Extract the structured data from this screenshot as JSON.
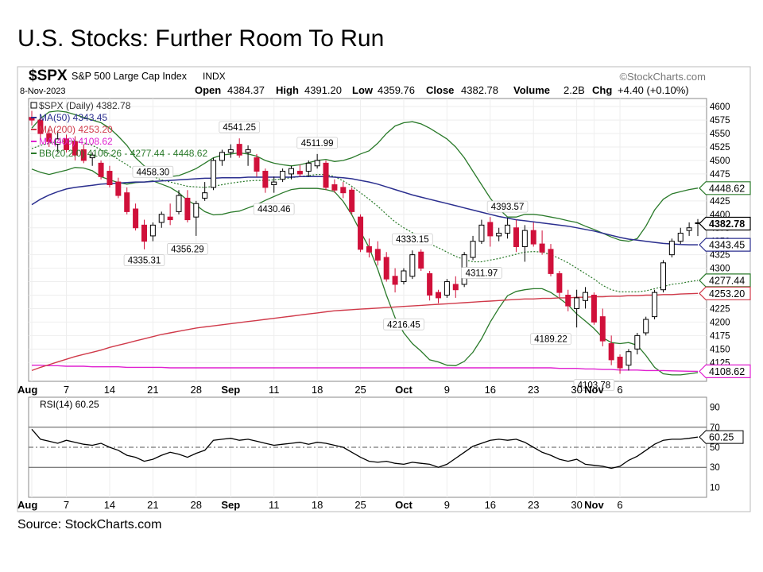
{
  "slide_title": "U.S. Stocks: Further Room To Run",
  "source": "Source: StockCharts.com",
  "brand": "©StockCharts.com",
  "chart_data": [
    {
      "type": "candlestick",
      "symbol": "$SPX",
      "name": "S&P 500 Large Cap Index",
      "exchange": "INDX",
      "date": "8-Nov-2023",
      "ohlc_line": {
        "open_label": "Open",
        "open": "4384.37",
        "high_label": "High",
        "high": "4391.20",
        "low_label": "Low",
        "low": "4359.76",
        "close_label": "Close",
        "close": "4382.78",
        "volume_label": "Volume",
        "volume": "2.2B",
        "chg_label": "Chg",
        "chg": "+4.40 (+0.10%)"
      },
      "legend": [
        {
          "text": "$SPX (Daily) 4382.78",
          "color": "#333333"
        },
        {
          "text": "MA(50) 4343.45",
          "color": "#2b2f8f"
        },
        {
          "text": "MA(200) 4253.20",
          "color": "#d03a4a"
        },
        {
          "text": "MA(400) 4108.62",
          "color": "#e020d0"
        },
        {
          "text": "BB(20,2.0) 4106.26 - 4277.44 - 4448.62",
          "color": "#2a7a2a"
        }
      ],
      "y_ticks": [
        4125,
        4150,
        4175,
        4200,
        4225,
        4250,
        4275,
        4300,
        4325,
        4350,
        4375,
        4400,
        4425,
        4450,
        4475,
        4500,
        4525,
        4550,
        4575,
        4600
      ],
      "ylim": [
        4090,
        4615
      ],
      "x_ticks": [
        {
          "label": "Aug",
          "bold": true,
          "i": 0
        },
        {
          "label": "7",
          "bold": false,
          "i": 4
        },
        {
          "label": "14",
          "bold": false,
          "i": 9
        },
        {
          "label": "21",
          "bold": false,
          "i": 14
        },
        {
          "label": "28",
          "bold": false,
          "i": 19
        },
        {
          "label": "Sep",
          "bold": true,
          "i": 23
        },
        {
          "label": "11",
          "bold": false,
          "i": 28
        },
        {
          "label": "18",
          "bold": false,
          "i": 33
        },
        {
          "label": "25",
          "bold": false,
          "i": 38
        },
        {
          "label": "Oct",
          "bold": true,
          "i": 43
        },
        {
          "label": "9",
          "bold": false,
          "i": 48
        },
        {
          "label": "16",
          "bold": false,
          "i": 53
        },
        {
          "label": "23",
          "bold": false,
          "i": 58
        },
        {
          "label": "30",
          "bold": false,
          "i": 63
        },
        {
          "label": "Nov",
          "bold": true,
          "i": 65
        },
        {
          "label": "6",
          "bold": false,
          "i": 68
        }
      ],
      "candles": [
        [
          4580,
          4592,
          4565,
          4575
        ],
        [
          4575,
          4580,
          4540,
          4550
        ],
        [
          4550,
          4560,
          4525,
          4535
        ],
        [
          4530,
          4555,
          4515,
          4540
        ],
        [
          4540,
          4548,
          4515,
          4520
        ],
        [
          4535,
          4545,
          4500,
          4510
        ],
        [
          4520,
          4530,
          4495,
          4500
        ],
        [
          4505,
          4515,
          4490,
          4510
        ],
        [
          4495,
          4500,
          4465,
          4470
        ],
        [
          4480,
          4490,
          4450,
          4455
        ],
        [
          4460,
          4468,
          4430,
          4435
        ],
        [
          4440,
          4450,
          4400,
          4405
        ],
        [
          4410,
          4420,
          4370,
          4375
        ],
        [
          4380,
          4390,
          4335,
          4350
        ],
        [
          4360,
          4385,
          4350,
          4380
        ],
        [
          4385,
          4405,
          4375,
          4400
        ],
        [
          4395,
          4420,
          4380,
          4390
        ],
        [
          4405,
          4445,
          4400,
          4435
        ],
        [
          4430,
          4445,
          4385,
          4390
        ],
        [
          4395,
          4425,
          4360,
          4420
        ],
        [
          4430,
          4460,
          4425,
          4440
        ],
        [
          4450,
          4505,
          4445,
          4500
        ],
        [
          4500,
          4520,
          4490,
          4515
        ],
        [
          4515,
          4530,
          4505,
          4520
        ],
        [
          4530,
          4541,
          4505,
          4510
        ],
        [
          4515,
          4528,
          4490,
          4520
        ],
        [
          4505,
          4512,
          4470,
          4480
        ],
        [
          4480,
          4485,
          4440,
          4450
        ],
        [
          4455,
          4470,
          4440,
          4460
        ],
        [
          4465,
          4485,
          4460,
          4480
        ],
        [
          4475,
          4490,
          4465,
          4485
        ],
        [
          4480,
          4492,
          4470,
          4475
        ],
        [
          4480,
          4500,
          4470,
          4495
        ],
        [
          4490,
          4512,
          4485,
          4500
        ],
        [
          4495,
          4500,
          4445,
          4450
        ],
        [
          4455,
          4465,
          4440,
          4445
        ],
        [
          4450,
          4460,
          4430,
          4440
        ],
        [
          4445,
          4450,
          4400,
          4405
        ],
        [
          4395,
          4400,
          4330,
          4335
        ],
        [
          4340,
          4355,
          4320,
          4330
        ],
        [
          4335,
          4350,
          4305,
          4315
        ],
        [
          4320,
          4330,
          4275,
          4280
        ],
        [
          4285,
          4300,
          4255,
          4270
        ],
        [
          4275,
          4300,
          4270,
          4295
        ],
        [
          4285,
          4333,
          4280,
          4325
        ],
        [
          4330,
          4335,
          4295,
          4300
        ],
        [
          4290,
          4295,
          4240,
          4250
        ],
        [
          4255,
          4260,
          4235,
          4245
        ],
        [
          4250,
          4280,
          4245,
          4275
        ],
        [
          4270,
          4285,
          4245,
          4260
        ],
        [
          4270,
          4330,
          4265,
          4325
        ],
        [
          4320,
          4360,
          4315,
          4350
        ],
        [
          4350,
          4390,
          4345,
          4380
        ],
        [
          4385,
          4395,
          4340,
          4360
        ],
        [
          4360,
          4375,
          4350,
          4365
        ],
        [
          4365,
          4393,
          4355,
          4380
        ],
        [
          4375,
          4390,
          4330,
          4340
        ],
        [
          4340,
          4380,
          4312,
          4370
        ],
        [
          4370,
          4385,
          4340,
          4345
        ],
        [
          4345,
          4370,
          4325,
          4330
        ],
        [
          4335,
          4345,
          4285,
          4290
        ],
        [
          4290,
          4295,
          4245,
          4255
        ],
        [
          4250,
          4260,
          4220,
          4230
        ],
        [
          4225,
          4260,
          4190,
          4245
        ],
        [
          4240,
          4265,
          4225,
          4255
        ],
        [
          4250,
          4255,
          4195,
          4200
        ],
        [
          4210,
          4225,
          4155,
          4165
        ],
        [
          4160,
          4175,
          4120,
          4130
        ],
        [
          4135,
          4140,
          4104,
          4115
        ],
        [
          4120,
          4150,
          4110,
          4145
        ],
        [
          4150,
          4180,
          4140,
          4175
        ],
        [
          4180,
          4210,
          4175,
          4205
        ],
        [
          4210,
          4260,
          4205,
          4255
        ],
        [
          4260,
          4315,
          4255,
          4310
        ],
        [
          4325,
          4355,
          4320,
          4350
        ],
        [
          4350,
          4375,
          4345,
          4365
        ],
        [
          4370,
          4385,
          4360,
          4375
        ],
        [
          4384.37,
          4391.2,
          4359.76,
          4382.78
        ]
      ],
      "bb_upper": [
        4560,
        4578,
        4590,
        4592,
        4590,
        4585,
        4580,
        4575,
        4570,
        4560,
        4545,
        4528,
        4505,
        4490,
        4478,
        4472,
        4470,
        4472,
        4478,
        4485,
        4495,
        4505,
        4510,
        4512,
        4514,
        4512,
        4508,
        4500,
        4495,
        4492,
        4490,
        4492,
        4496,
        4500,
        4502,
        4498,
        4500,
        4505,
        4512,
        4518,
        4532,
        4550,
        4564,
        4570,
        4572,
        4568,
        4560,
        4550,
        4540,
        4525,
        4505,
        4480,
        4455,
        4430,
        4410,
        4395,
        4395,
        4400,
        4400,
        4398,
        4395,
        4392,
        4388,
        4385,
        4378,
        4372,
        4365,
        4358,
        4352,
        4350,
        4355,
        4378,
        4408,
        4428,
        4438,
        4442,
        4446,
        4448.62
      ],
      "bb_middle": [
        4522,
        4528,
        4532,
        4535,
        4536,
        4536,
        4533,
        4528,
        4520,
        4512,
        4502,
        4492,
        4482,
        4475,
        4470,
        4464,
        4460,
        4456,
        4452,
        4451,
        4450,
        4452,
        4455,
        4458,
        4460,
        4462,
        4463,
        4463,
        4464,
        4466,
        4468,
        4470,
        4472,
        4474,
        4474,
        4470,
        4462,
        4452,
        4440,
        4428,
        4415,
        4400,
        4386,
        4375,
        4366,
        4357,
        4345,
        4338,
        4330,
        4322,
        4316,
        4312,
        4312,
        4315,
        4318,
        4322,
        4326,
        4330,
        4331,
        4330,
        4325,
        4318,
        4310,
        4300,
        4290,
        4280,
        4268,
        4260,
        4256,
        4256,
        4256,
        4258,
        4262,
        4266,
        4270,
        4272,
        4275,
        4277.44
      ],
      "bb_lower": [
        4484,
        4478,
        4474,
        4478,
        4482,
        4487,
        4486,
        4481,
        4470,
        4464,
        4459,
        4456,
        4459,
        4460,
        4462,
        4456,
        4450,
        4440,
        4426,
        4417,
        4405,
        4399,
        4400,
        4404,
        4406,
        4412,
        4418,
        4426,
        4433,
        4440,
        4446,
        4448,
        4448,
        4448,
        4446,
        4442,
        4424,
        4399,
        4368,
        4338,
        4298,
        4250,
        4208,
        4180,
        4160,
        4146,
        4130,
        4126,
        4120,
        4119,
        4127,
        4144,
        4169,
        4200,
        4226,
        4249,
        4257,
        4260,
        4262,
        4262,
        4255,
        4244,
        4232,
        4215,
        4202,
        4188,
        4171,
        4162,
        4160,
        4162,
        4157,
        4138,
        4116,
        4104,
        4102,
        4102,
        4104,
        4106.26
      ],
      "ma50": [
        4418,
        4428,
        4436,
        4442,
        4447,
        4450,
        4452,
        4454,
        4456,
        4457,
        4458,
        4459,
        4460,
        4460,
        4461,
        4462,
        4463,
        4464,
        4465,
        4466,
        4467,
        4467,
        4468,
        4468,
        4468,
        4469,
        4469,
        4469,
        4469,
        4469,
        4469,
        4470,
        4470,
        4470,
        4470,
        4469,
        4468,
        4466,
        4463,
        4460,
        4456,
        4451,
        4446,
        4441,
        4436,
        4432,
        4428,
        4424,
        4420,
        4416,
        4412,
        4408,
        4404,
        4400,
        4396,
        4393,
        4390,
        4388,
        4386,
        4384,
        4382,
        4380,
        4378,
        4375,
        4372,
        4369,
        4365,
        4361,
        4357,
        4354,
        4352,
        4350,
        4348,
        4346,
        4345,
        4344,
        4343.5,
        4343.45
      ],
      "ma200": [
        4110,
        4116,
        4121,
        4126,
        4131,
        4136,
        4140,
        4144,
        4148,
        4153,
        4157,
        4161,
        4165,
        4169,
        4173,
        4177,
        4180,
        4183,
        4186,
        4189,
        4191,
        4193,
        4195,
        4197,
        4199,
        4201,
        4203,
        4205,
        4207,
        4209,
        4211,
        4213,
        4215,
        4217,
        4219,
        4221,
        4222,
        4223,
        4224,
        4225,
        4226,
        4227,
        4228,
        4229,
        4230,
        4231,
        4232,
        4233,
        4234,
        4235,
        4236,
        4237,
        4238,
        4239,
        4240,
        4241,
        4242,
        4243,
        4243,
        4244,
        4244,
        4245,
        4245,
        4246,
        4246,
        4247,
        4247,
        4248,
        4248,
        4249,
        4249,
        4250,
        4250,
        4251,
        4251,
        4252,
        4252.6,
        4253.2
      ],
      "ma400": [
        4120,
        4120,
        4119,
        4119,
        4118,
        4118,
        4118,
        4117,
        4117,
        4117,
        4117,
        4116,
        4116,
        4116,
        4116,
        4116,
        4115,
        4115,
        4115,
        4115,
        4115,
        4115,
        4115,
        4115,
        4115,
        4115,
        4115,
        4115,
        4115,
        4115,
        4115,
        4115,
        4115,
        4115,
        4115,
        4115,
        4115,
        4115,
        4115,
        4115,
        4115,
        4115,
        4115,
        4115,
        4115,
        4115,
        4115,
        4115,
        4115,
        4115,
        4115,
        4115,
        4115,
        4115,
        4115,
        4115,
        4115,
        4115,
        4115,
        4115,
        4115,
        4114,
        4114,
        4114,
        4113,
        4113,
        4112,
        4112,
        4111,
        4111,
        4111,
        4110,
        4110,
        4110,
        4109.5,
        4109,
        4108.8,
        4108.62
      ],
      "annotations": [
        {
          "text": "4458.30",
          "i": 14,
          "value": 4458.3,
          "pos": "above"
        },
        {
          "text": "4541.25",
          "i": 24,
          "value": 4541.25,
          "pos": "above"
        },
        {
          "text": "4511.99",
          "i": 33,
          "value": 4511.99,
          "pos": "above"
        },
        {
          "text": "4430.46",
          "i": 28,
          "value": 4430.46,
          "pos": "below"
        },
        {
          "text": "4335.31",
          "i": 13,
          "value": 4335.31,
          "pos": "below"
        },
        {
          "text": "4356.29",
          "i": 18,
          "value": 4356.29,
          "pos": "below"
        },
        {
          "text": "4333.15",
          "i": 44,
          "value": 4333.15,
          "pos": "above"
        },
        {
          "text": "4216.45",
          "i": 43,
          "value": 4216.45,
          "pos": "below"
        },
        {
          "text": "4311.97",
          "i": 52,
          "value": 4311.97,
          "pos": "below"
        },
        {
          "text": "4393.57",
          "i": 55,
          "value": 4393.57,
          "pos": "above"
        },
        {
          "text": "4189.22",
          "i": 60,
          "value": 4189.22,
          "pos": "below"
        },
        {
          "text": "4103.78",
          "i": 65,
          "value": 4103.78,
          "pos": "below"
        }
      ],
      "right_labels": [
        {
          "text": "4448.62",
          "value": 4448.62,
          "color": "#2a7a2a",
          "bold": false
        },
        {
          "text": "4382.78",
          "value": 4382.78,
          "color": "#000000",
          "bold": true
        },
        {
          "text": "4343.45",
          "value": 4343.45,
          "color": "#2b2f8f",
          "bold": false
        },
        {
          "text": "4277.44",
          "value": 4277.44,
          "color": "#2a7a2a",
          "bold": false
        },
        {
          "text": "4253.20",
          "value": 4253.2,
          "color": "#d03a4a",
          "bold": false
        },
        {
          "text": "4108.62",
          "value": 4108.62,
          "color": "#e020d0",
          "bold": false
        }
      ]
    },
    {
      "type": "line",
      "title": "RSI(14) 60.25",
      "y_ticks": [
        10,
        30,
        50,
        70,
        90
      ],
      "ylim": [
        0,
        100
      ],
      "reference_lines": [
        30,
        50,
        70
      ],
      "right_label": {
        "text": "60.25",
        "value": 60.25
      },
      "values": [
        68,
        58,
        56,
        54,
        57,
        55,
        53,
        52,
        54,
        50,
        47,
        42,
        40,
        36,
        38,
        42,
        45,
        43,
        40,
        44,
        47,
        57,
        58,
        59,
        57,
        58,
        56,
        54,
        52,
        53,
        54,
        55,
        53,
        55,
        54,
        52,
        50,
        45,
        40,
        36,
        35,
        36,
        34,
        33,
        35,
        34,
        33,
        30,
        33,
        39,
        45,
        51,
        54,
        57,
        58,
        57,
        58,
        55,
        50,
        45,
        42,
        38,
        36,
        38,
        33,
        32,
        31,
        29,
        31,
        37,
        41,
        47,
        53,
        57,
        58,
        58,
        59,
        60.25
      ]
    }
  ]
}
